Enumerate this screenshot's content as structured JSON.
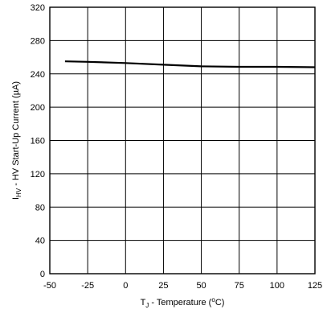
{
  "chart_data": {
    "type": "line",
    "xlabel": {
      "main": "T",
      "sub": "J",
      "rest": " - Temperature (",
      "sup": "o",
      "unit": "C)"
    },
    "ylabel": {
      "main": "I",
      "sub": "HV",
      "rest": " - HV Start-Up Current (µA)"
    },
    "xlim": [
      -50,
      125
    ],
    "ylim": [
      0,
      320
    ],
    "xticks": [
      -50,
      -25,
      0,
      25,
      50,
      75,
      100,
      125
    ],
    "yticks": [
      0,
      40,
      80,
      120,
      160,
      200,
      240,
      280,
      320
    ],
    "grid": true,
    "series": [
      {
        "x": [
          -40,
          -25,
          0,
          25,
          50,
          75,
          100,
          125
        ],
        "values": [
          255,
          254.5,
          253,
          251,
          249,
          248.5,
          248.5,
          248
        ]
      }
    ]
  }
}
